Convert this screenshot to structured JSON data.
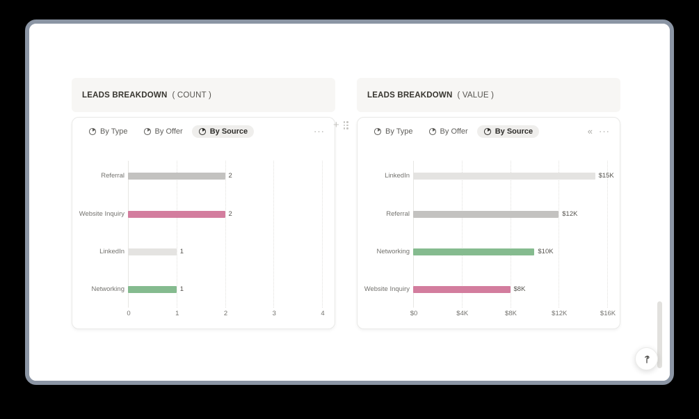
{
  "chart_data": [
    {
      "type": "bar",
      "orientation": "horizontal",
      "title": "LEADS BREAKDOWN ( COUNT )",
      "categories": [
        "Referral",
        "Website Inquiry",
        "LinkedIn",
        "Networking"
      ],
      "values": [
        2,
        2,
        1,
        1
      ],
      "value_labels": [
        "2",
        "2",
        "1",
        "1"
      ],
      "bar_colors": [
        "#c3c2c0",
        "#d37d9e",
        "#e4e3e1",
        "#85bb8f"
      ],
      "x_ticks": [
        "0",
        "1",
        "2",
        "3",
        "4"
      ],
      "xlim": [
        0,
        4
      ],
      "grid": "vertical-dotted",
      "legend": "none"
    },
    {
      "type": "bar",
      "orientation": "horizontal",
      "title": "LEADS BREAKDOWN ( VALUE )",
      "categories": [
        "LinkedIn",
        "Referral",
        "Networking",
        "Website Inquiry"
      ],
      "values": [
        15000,
        12000,
        10000,
        8000
      ],
      "value_labels": [
        "$15K",
        "$12K",
        "$10K",
        "$8K"
      ],
      "bar_colors": [
        "#e4e3e1",
        "#c3c2c0",
        "#85bb8f",
        "#d37d9e"
      ],
      "x_ticks": [
        "$0",
        "$4K",
        "$8K",
        "$12K",
        "$16K"
      ],
      "xlim": [
        0,
        16000
      ],
      "grid": "vertical-dotted",
      "legend": "none"
    }
  ],
  "panels": [
    {
      "header": {
        "title": "LEADS BREAKDOWN",
        "qualifier": "( COUNT )"
      },
      "tabs": [
        {
          "label": "By Type"
        },
        {
          "label": "By Offer"
        },
        {
          "label": "By Source"
        }
      ],
      "active_tab": "By Source",
      "controls": {
        "ellipsis": "···"
      }
    },
    {
      "header": {
        "title": "LEADS BREAKDOWN",
        "qualifier": "( VALUE )"
      },
      "tabs": [
        {
          "label": "By Type"
        },
        {
          "label": "By Offer"
        },
        {
          "label": "By Source"
        }
      ],
      "active_tab": "By Source",
      "controls": {
        "collapse": "«",
        "ellipsis": "···"
      }
    }
  ],
  "block_handles": {
    "add": "+"
  },
  "colors": {
    "window_border": "#8b95a4",
    "header_bg": "#f7f6f4",
    "active_pill_bg": "#efeeec",
    "bar_gray": "#c3c2c0",
    "bar_pink": "#d37d9e",
    "bar_light_gray": "#e4e3e1",
    "bar_green": "#85bb8f"
  }
}
